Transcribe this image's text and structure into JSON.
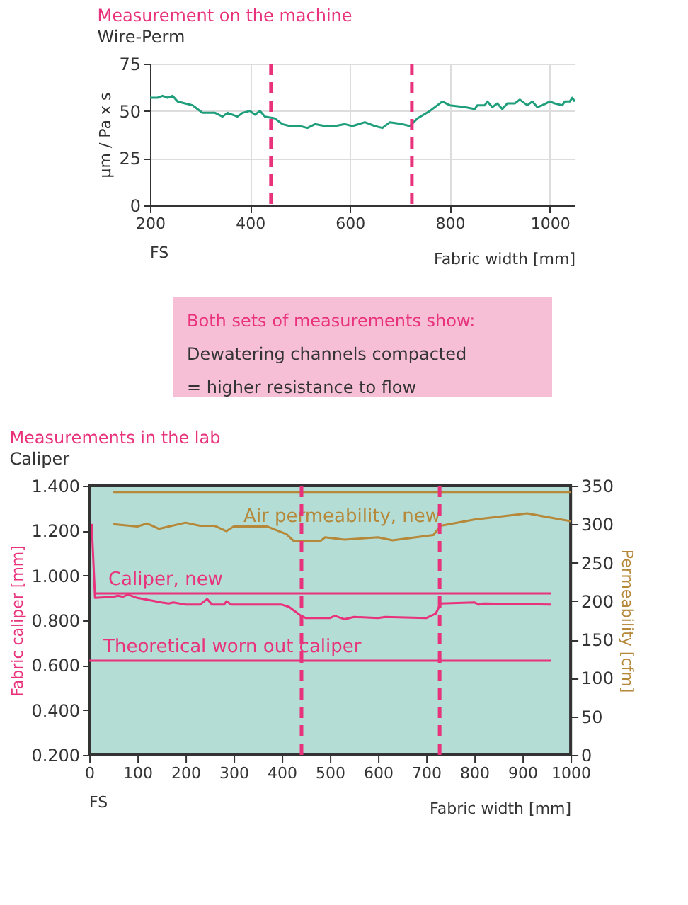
{
  "chart_data": [
    {
      "type": "line",
      "title": "Measurement on the machine",
      "subtitle": "Wire-Perm",
      "ylabel": "µm / Pa x s",
      "xlabel": "Fabric width [mm]",
      "annotations": [
        "FS"
      ],
      "xlim": [
        200,
        1050
      ],
      "xticks": [
        200,
        400,
        600,
        800,
        1000
      ],
      "ylim": [
        0,
        75
      ],
      "yticks": [
        0,
        25,
        50,
        75
      ],
      "grid": true,
      "legend": false,
      "series": [
        {
          "color": "#1f9e7b",
          "x": [
            200,
            215,
            225,
            235,
            245,
            255,
            270,
            285,
            295,
            305,
            330,
            345,
            355,
            375,
            385,
            400,
            410,
            420,
            430,
            450,
            465,
            480,
            500,
            515,
            530,
            550,
            570,
            590,
            605,
            630,
            650,
            665,
            680,
            705,
            720,
            735,
            760,
            785,
            800,
            830,
            850,
            855,
            870,
            875,
            885,
            895,
            905,
            915,
            930,
            940,
            955,
            965,
            975,
            985,
            1000,
            1010,
            1025,
            1030,
            1040,
            1045,
            1050
          ],
          "values": [
            57,
            57,
            58,
            57,
            58,
            55,
            54,
            53,
            51,
            49,
            49,
            47,
            49,
            47,
            49,
            50,
            48,
            50,
            47,
            46,
            43,
            42,
            42,
            41,
            43,
            42,
            42,
            43,
            42,
            44,
            42,
            41,
            44,
            43,
            42,
            46,
            50,
            55,
            53,
            52,
            51,
            53,
            53,
            55,
            52,
            54,
            51,
            54,
            54,
            56,
            53,
            55,
            52,
            53,
            55,
            54,
            53,
            55,
            55,
            57,
            55
          ]
        }
      ],
      "ref_lines": [
        {
          "axis": "x",
          "value": 442,
          "color": "#e8327c",
          "line_style": "dashed"
        },
        {
          "axis": "x",
          "value": 724,
          "color": "#e8327c",
          "line_style": "dashed"
        }
      ]
    },
    {
      "type": "other",
      "annotations": [
        "Both sets of measurements show:",
        "Dewatering channels compacted",
        "= higher resistance to flow"
      ]
    },
    {
      "type": "line",
      "title": "Measurements in the lab",
      "subtitle": "Caliper",
      "ylabel": "Fabric caliper [mm]",
      "y2label": "Permeability [cfm]",
      "xlabel": "Fabric width [mm]",
      "annotations": [
        "FS"
      ],
      "xlim": [
        0,
        1000
      ],
      "xticks": [
        0,
        100,
        200,
        300,
        400,
        500,
        600,
        700,
        800,
        900,
        1000
      ],
      "ylim": [
        0.2,
        1.4
      ],
      "yticks": [
        {
          "value": 0.2,
          "label": "0.200"
        },
        {
          "value": 0.4,
          "label": "0.400"
        },
        {
          "value": 0.6,
          "label": "0.600"
        },
        {
          "value": 0.8,
          "label": "0.800"
        },
        {
          "value": 1.0,
          "label": "1.000"
        },
        {
          "value": 1.2,
          "label": "1.200"
        },
        {
          "value": 1.4,
          "label": "1.400"
        }
      ],
      "y2lim": [
        0,
        350
      ],
      "y2ticks": [
        0,
        50,
        100,
        150,
        200,
        250,
        300,
        350
      ],
      "grid": false,
      "legend": false,
      "series": [
        {
          "name": "Air permeability, new",
          "color": "#b5883a",
          "axis": "y2",
          "x": [
            50,
            1000
          ],
          "values": [
            342,
            342
          ]
        },
        {
          "color": "#b5883a",
          "axis": "y2",
          "x": [
            50,
            100,
            120,
            145,
            200,
            230,
            260,
            285,
            300,
            370,
            410,
            425,
            480,
            490,
            530,
            600,
            630,
            715,
            730,
            800,
            910,
            1000
          ],
          "values": [
            300,
            297,
            301,
            294,
            302,
            298,
            298,
            291,
            297,
            297,
            287,
            278,
            278,
            283,
            280,
            283,
            279,
            286,
            298,
            306,
            314,
            304
          ]
        },
        {
          "name": "Caliper, new",
          "color": "#e8327c",
          "x": [
            10,
            960
          ],
          "values": [
            0.92,
            0.92
          ]
        },
        {
          "color": "#e8327c",
          "x": [
            5,
            12,
            50,
            60,
            70,
            80,
            100,
            150,
            165,
            175,
            200,
            230,
            245,
            255,
            280,
            285,
            295,
            400,
            415,
            440,
            450,
            500,
            510,
            530,
            550,
            600,
            615,
            700,
            720,
            730,
            800,
            810,
            820,
            960
          ],
          "values": [
            1.23,
            0.9,
            0.905,
            0.91,
            0.905,
            0.915,
            0.9,
            0.88,
            0.875,
            0.88,
            0.87,
            0.87,
            0.895,
            0.87,
            0.87,
            0.885,
            0.87,
            0.87,
            0.86,
            0.82,
            0.81,
            0.81,
            0.82,
            0.805,
            0.815,
            0.81,
            0.815,
            0.81,
            0.83,
            0.875,
            0.88,
            0.87,
            0.875,
            0.87
          ]
        },
        {
          "name": "Theoretical worn out caliper",
          "color": "#e8327c",
          "x": [
            0,
            960
          ],
          "values": [
            0.62,
            0.62
          ]
        }
      ],
      "ref_lines": [
        {
          "axis": "x",
          "value": 441,
          "color": "#e8327c",
          "line_style": "dashed"
        },
        {
          "axis": "x",
          "value": 728,
          "color": "#e8327c",
          "line_style": "dashed"
        }
      ]
    }
  ]
}
